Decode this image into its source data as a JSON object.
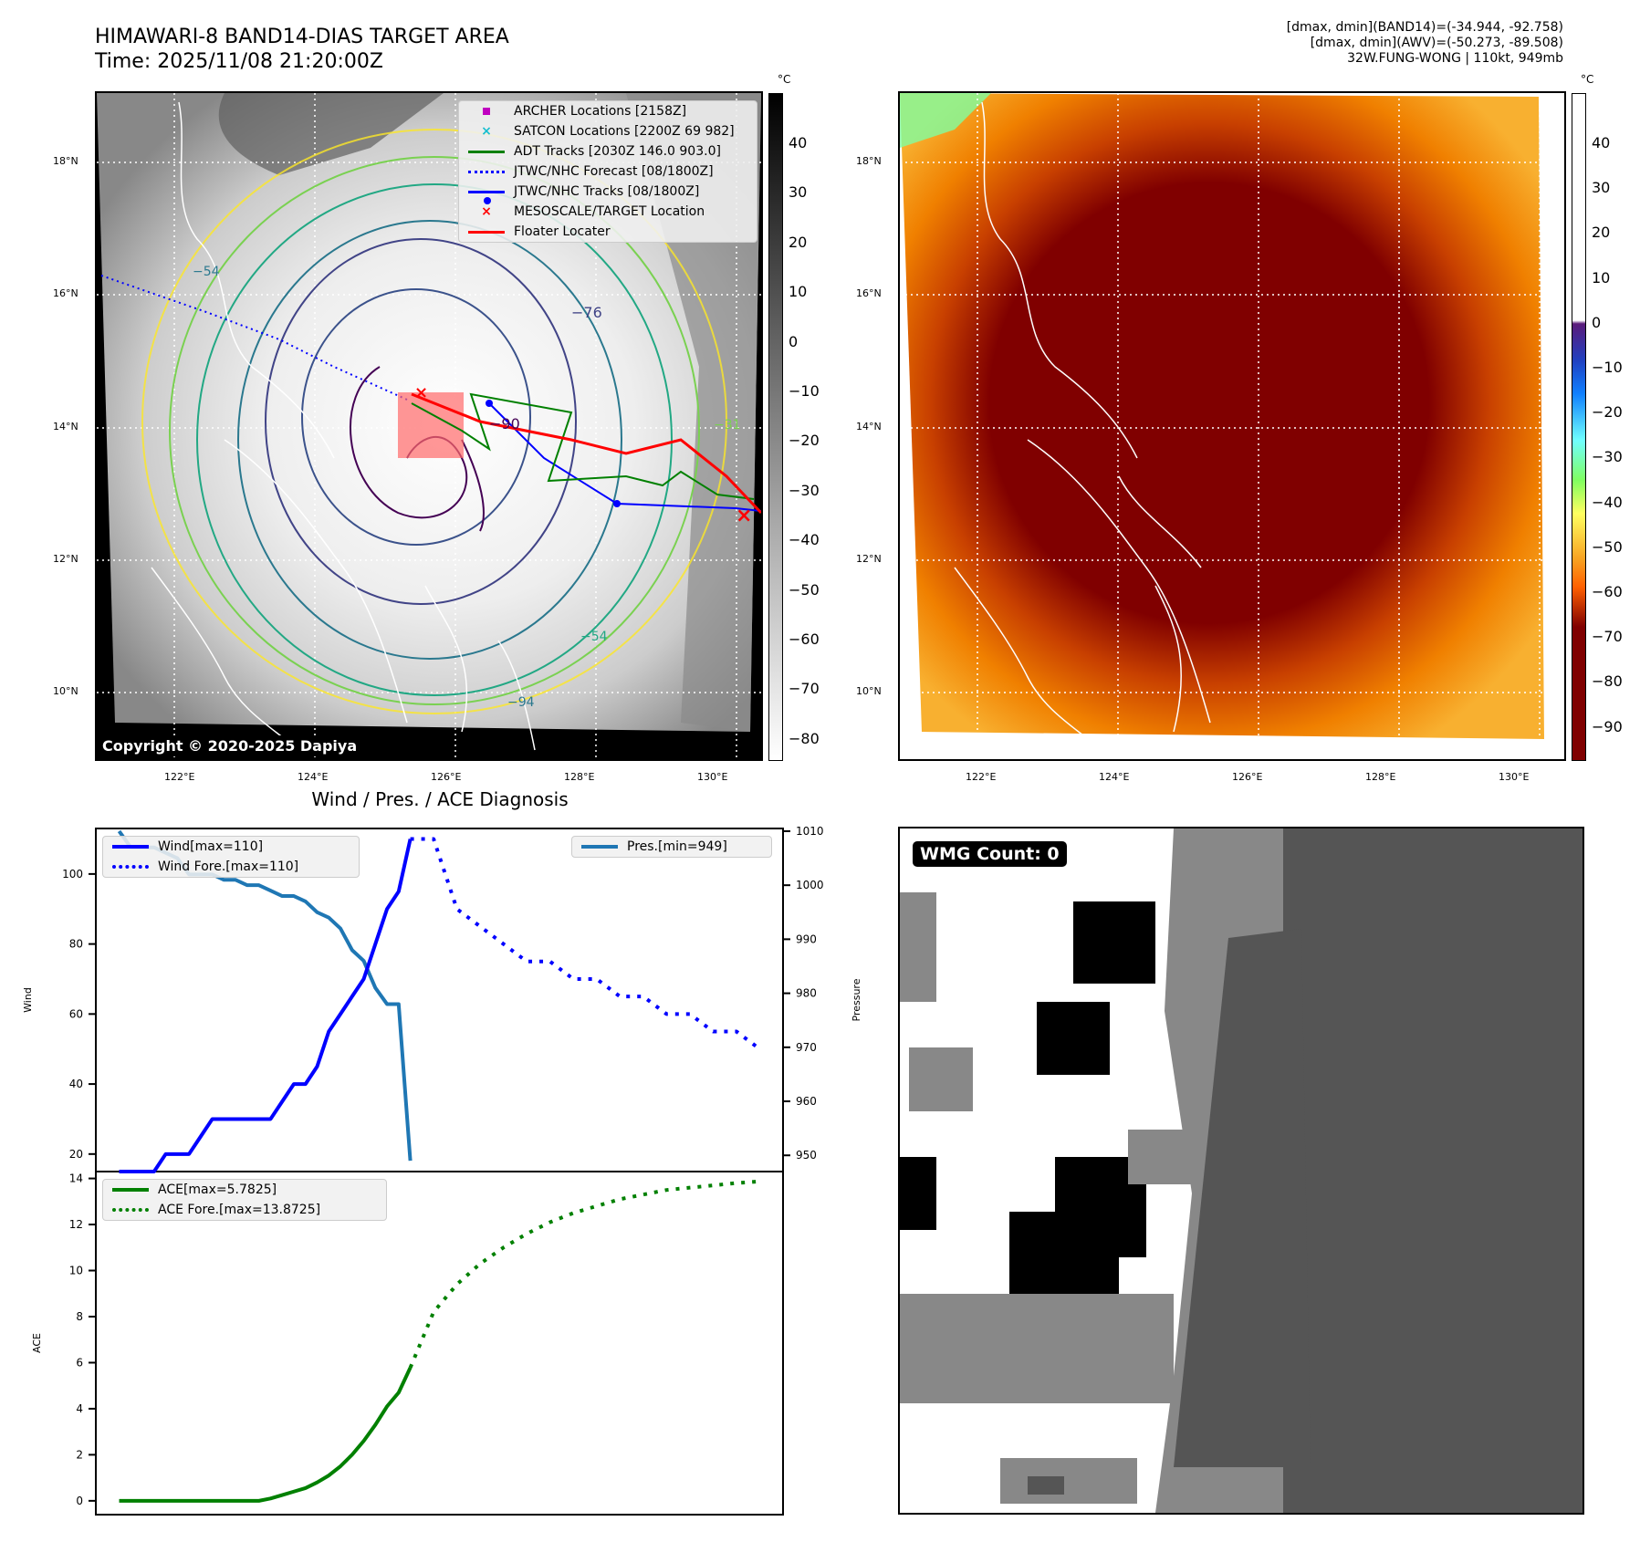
{
  "header": {
    "title": "HIMAWARI-8 BAND14-DIAS TARGET AREA",
    "time": "Time: 2025/11/08 21:20:00Z",
    "info_line1": "[dmax, dmin](BAND14)=(-34.944, -92.758)",
    "info_line2": "[dmax, dmin](AWV)=(-50.273, -89.508)",
    "info_line3": "32W.FUNG-WONG | 110kt, 949mb"
  },
  "map_left": {
    "lat_ticks": [
      "18°N",
      "16°N",
      "14°N",
      "12°N",
      "10°N"
    ],
    "lon_ticks": [
      "122°E",
      "124°E",
      "126°E",
      "128°E",
      "130°E"
    ],
    "copyright": "Copyright © 2020-2025 Dapiya",
    "colorbar_unit": "°C",
    "colorbar_ticks": [
      "40",
      "30",
      "20",
      "10",
      "0",
      "−10",
      "−20",
      "−30",
      "−40",
      "−50",
      "−60",
      "−70",
      "−80"
    ],
    "contour_labels": [
      "−76",
      "−90",
      "−54",
      "−31",
      "−94",
      "−54"
    ],
    "legend": [
      {
        "label": "ARCHER Locations [2158Z]",
        "icon": "square-marker-icon",
        "color": "#c000c0"
      },
      {
        "label": "SATCON Locations [2200Z 69 982]",
        "icon": "x-marker-icon",
        "color": "#17becf"
      },
      {
        "label": "ADT Tracks [2030Z 146.0 903.0]",
        "icon": "solid-line-icon",
        "color": "#008000"
      },
      {
        "label": "JTWC/NHC Forecast [08/1800Z]",
        "icon": "dotted-line-icon",
        "color": "#0000ff"
      },
      {
        "label": "JTWC/NHC Tracks [08/1800Z]",
        "icon": "line-dot-icon",
        "color": "#0000ff"
      },
      {
        "label": "MESOSCALE/TARGET Location",
        "icon": "x-marker-icon",
        "color": "#ff0000"
      },
      {
        "label": "Floater Locater",
        "icon": "solid-line-icon",
        "color": "#ff0000"
      }
    ]
  },
  "map_right": {
    "lat_ticks": [
      "18°N",
      "16°N",
      "14°N",
      "12°N",
      "10°N"
    ],
    "lon_ticks": [
      "122°E",
      "124°E",
      "126°E",
      "128°E",
      "130°E"
    ],
    "colorbar_unit": "°C",
    "colorbar_ticks": [
      "40",
      "30",
      "20",
      "10",
      "0",
      "−10",
      "−20",
      "−30",
      "−40",
      "−50",
      "−60",
      "−70",
      "−80",
      "−90"
    ]
  },
  "wmg": {
    "label": "WMG Count: 0"
  },
  "colors": {
    "wind": "#0000ff",
    "pres": "#1f77b4",
    "ace": "#008000"
  },
  "chart_data": [
    {
      "type": "line",
      "title": "Wind / Pres. / ACE Diagnosis",
      "ylabel": "Wind",
      "ylabel_right": "Pressure",
      "ylim": [
        15,
        113
      ],
      "ylim_right": [
        947,
        1010.5
      ],
      "yticks": [
        "20",
        "40",
        "60",
        "80",
        "100"
      ],
      "yticks_right": [
        "950",
        "960",
        "970",
        "980",
        "990",
        "1000",
        "1010"
      ],
      "series": [
        {
          "name": "Wind[max=110]",
          "style": "solid",
          "axis": "left",
          "x": [
            0,
            1,
            2,
            3,
            4,
            5,
            6,
            7,
            8,
            9,
            10,
            11,
            12,
            13,
            14,
            15,
            16,
            17,
            18,
            19,
            20,
            21,
            22,
            23,
            24,
            25
          ],
          "values": [
            15,
            15,
            15,
            15,
            20,
            20,
            20,
            25,
            30,
            30,
            30,
            30,
            30,
            30,
            35,
            40,
            40,
            45,
            55,
            60,
            65,
            70,
            80,
            90,
            95,
            110
          ]
        },
        {
          "name": "Wind Fore.[max=110]",
          "style": "dotted",
          "axis": "left",
          "x": [
            25,
            27,
            29,
            31,
            33,
            35,
            37,
            39,
            41,
            43,
            45,
            47,
            49,
            51,
            53,
            55
          ],
          "values": [
            110,
            110,
            90,
            85,
            80,
            75,
            75,
            70,
            70,
            65,
            65,
            60,
            60,
            55,
            55,
            50
          ]
        },
        {
          "name": "Pres.[min=949]",
          "style": "solid",
          "axis": "right",
          "x": [
            0,
            1,
            2,
            3,
            4,
            5,
            6,
            7,
            8,
            9,
            10,
            11,
            12,
            13,
            14,
            15,
            16,
            17,
            18,
            19,
            20,
            21,
            22,
            23,
            24,
            25
          ],
          "values": [
            1010,
            1007,
            1007,
            1007,
            1006,
            1005,
            1002,
            1002,
            1002,
            1001,
            1001,
            1000,
            1000,
            999,
            998,
            998,
            997,
            995,
            994,
            992,
            988,
            986,
            981,
            978,
            978,
            949
          ]
        }
      ],
      "legend": [
        "Wind[max=110]",
        "Wind Fore.[max=110]",
        "Pres.[min=949]"
      ]
    },
    {
      "type": "line",
      "ylabel": "ACE",
      "ylim": [
        -0.6,
        14.3
      ],
      "yticks": [
        "0",
        "2",
        "4",
        "6",
        "8",
        "10",
        "12",
        "14"
      ],
      "series": [
        {
          "name": "ACE[max=5.7825]",
          "style": "solid",
          "x": [
            0,
            1,
            2,
            3,
            4,
            5,
            6,
            7,
            8,
            9,
            10,
            11,
            12,
            13,
            14,
            15,
            16,
            17,
            18,
            19,
            20,
            21,
            22,
            23,
            24,
            25
          ],
          "values": [
            0,
            0,
            0,
            0,
            0,
            0,
            0,
            0,
            0,
            0,
            0,
            0,
            0,
            0.1,
            0.25,
            0.4,
            0.55,
            0.8,
            1.1,
            1.5,
            2.0,
            2.6,
            3.3,
            4.1,
            4.7,
            5.7825
          ]
        },
        {
          "name": "ACE Fore.[max=13.8725]",
          "style": "dotted",
          "x": [
            25,
            27,
            29,
            31,
            33,
            35,
            37,
            39,
            41,
            43,
            45,
            47,
            49,
            51,
            53,
            55
          ],
          "values": [
            5.7825,
            8.2,
            9.4,
            10.3,
            11.0,
            11.6,
            12.1,
            12.5,
            12.8,
            13.1,
            13.3,
            13.5,
            13.6,
            13.7,
            13.8,
            13.8725
          ]
        }
      ],
      "legend": [
        "ACE[max=5.7825]",
        "ACE Fore.[max=13.8725]"
      ]
    }
  ]
}
